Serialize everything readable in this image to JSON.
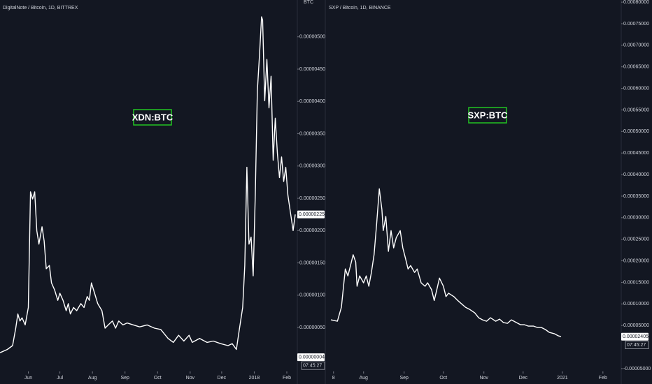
{
  "chart_data": [
    {
      "type": "line",
      "title": "DigitalNote / Bitcoin, 1D, BITTREX",
      "annotation": "XDN:BTC",
      "axis_unit": "BTC",
      "color": "#ffffff",
      "x": [
        0,
        7,
        12,
        15,
        17,
        19,
        21,
        24,
        27,
        29,
        31,
        33,
        35,
        37,
        40,
        42,
        44,
        47,
        49,
        52,
        55,
        57,
        60,
        63,
        65,
        67,
        70,
        73,
        77,
        80,
        83,
        85,
        87,
        90,
        93,
        97,
        100,
        103,
        107,
        110,
        113,
        117,
        121,
        127,
        133,
        140,
        147,
        153,
        160,
        165,
        170,
        175,
        180,
        183,
        190,
        197,
        203,
        210,
        217,
        221,
        225,
        228,
        231,
        233,
        235,
        237,
        239,
        241,
        243,
        245,
        247,
        249,
        250,
        252,
        254,
        256,
        258,
        260,
        262,
        264,
        266,
        268,
        270,
        272,
        274,
        276,
        279,
        281
      ],
      "values": [
        1.1e-07,
        1.6e-07,
        2.2e-07,
        4.9e-07,
        7.1e-07,
        6e-07,
        6.5e-07,
        5.4e-07,
        8.1e-07,
        2.6e-06,
        2.49e-06,
        2.6e-06,
        2e-06,
        1.79e-06,
        2.06e-06,
        1.84e-06,
        1.41e-06,
        1.46e-06,
        1.19e-06,
        1.08e-06,
        9.2e-07,
        1.03e-06,
        9.2e-07,
        7.6e-07,
        8.7e-07,
        7.1e-07,
        8.1e-07,
        7.6e-07,
        8.7e-07,
        8.1e-07,
        9.8e-07,
        9.2e-07,
        1.19e-06,
        1.03e-06,
        8.7e-07,
        7.6e-07,
        4.9e-07,
        5.4e-07,
        6e-07,
        4.9e-07,
        6e-07,
        5.4e-07,
        5.7e-07,
        5.4e-07,
        5.1e-07,
        5.4e-07,
        4.9e-07,
        4.7e-07,
        3.3e-07,
        2.7e-07,
        3.8e-07,
        2.9e-07,
        3.8e-07,
        2.7e-07,
        3.3e-07,
        2.7e-07,
        2.9e-07,
        2.5e-07,
        2.2e-07,
        2.5e-07,
        1.6e-07,
        4.9e-07,
        8.1e-07,
        1.46e-06,
        2.98e-06,
        1.79e-06,
        1.9e-06,
        1.3e-06,
        2.55e-06,
        4.17e-06,
        4.71e-06,
        5.31e-06,
        5.26e-06,
        4.01e-06,
        4.65e-06,
        3.9e-06,
        4.39e-06,
        3.09e-06,
        3.74e-06,
        3.2e-06,
        2.82e-06,
        3.14e-06,
        2.76e-06,
        2.98e-06,
        2.55e-06,
        2.33e-06,
        2e-06,
        2.25e-06
      ],
      "xlim": [
        0,
        281
      ],
      "xticks": [
        {
          "value": 27,
          "label": "Jun"
        },
        {
          "value": 57,
          "label": "Jul"
        },
        {
          "value": 88,
          "label": "Aug"
        },
        {
          "value": 119,
          "label": "Sep"
        },
        {
          "value": 150,
          "label": "Oct"
        },
        {
          "value": 181,
          "label": "Nov"
        },
        {
          "value": 211,
          "label": "Dec"
        },
        {
          "value": 242,
          "label": "2018"
        },
        {
          "value": 273,
          "label": "Feb"
        }
      ],
      "ylim": [
        -1.8e-07,
        5.57e-06
      ],
      "yticks": [
        {
          "value": 5e-07,
          "label": "0.00000050"
        },
        {
          "value": 1e-06,
          "label": "0.00000100"
        },
        {
          "value": 1.5e-06,
          "label": "0.00000150"
        },
        {
          "value": 2e-06,
          "label": "0.00000200"
        },
        {
          "value": 2.5e-06,
          "label": "0.00000250"
        },
        {
          "value": 3e-06,
          "label": "0.00000300"
        },
        {
          "value": 3.5e-06,
          "label": "0.00000350"
        },
        {
          "value": 4e-06,
          "label": "0.00000400"
        },
        {
          "value": 4.5e-06,
          "label": "0.00000450"
        },
        {
          "value": 5e-06,
          "label": "0.00000500"
        }
      ],
      "price_labels": [
        {
          "value": 2.25e-06,
          "label": "0.00000225"
        },
        {
          "value": 4e-08,
          "label": "0.00000004"
        }
      ],
      "countdown": "07:45:27"
    },
    {
      "type": "line",
      "title": "SXP / Bitcoin, 1D, BINANCE",
      "annotation": "SXP:BTC",
      "color": "#ffffff",
      "x": [
        23,
        28,
        31,
        34,
        36,
        38,
        40,
        42,
        43,
        45,
        48,
        50,
        52,
        54,
        56,
        58,
        60,
        62,
        63,
        65,
        67,
        69,
        71,
        73,
        76,
        78,
        80,
        82,
        84,
        87,
        89,
        92,
        95,
        97,
        100,
        102,
        104,
        106,
        109,
        111,
        113,
        117,
        120,
        123,
        126,
        129,
        133,
        136,
        139,
        142,
        145,
        149,
        152,
        155,
        158,
        161,
        165,
        168,
        171,
        174,
        178,
        181,
        184,
        187,
        190,
        194,
        197,
        199
      ],
      "values": [
        6.31e-05,
        5.99e-05,
        9.22e-05,
        0.0001812,
        0.000165,
        0.000189,
        0.000214,
        0.000197,
        0.000141,
        0.000165,
        0.000149,
        0.000165,
        0.000141,
        0.000173,
        0.000214,
        0.000286,
        0.000367,
        0.000319,
        0.00027,
        0.000303,
        0.000222,
        0.00027,
        0.00023,
        0.000254,
        0.00027,
        0.00023,
        0.000206,
        0.000181,
        0.000189,
        0.000173,
        0.000181,
        0.000149,
        0.000141,
        0.000149,
        0.000133,
        0.000108,
        0.000133,
        0.00016,
        0.000141,
        0.000117,
        0.000125,
        0.000117,
        0.000108,
        0.0001,
        9.22e-05,
        8.74e-05,
        7.93e-05,
        6.8e-05,
        6.31e-05,
        5.99e-05,
        6.8e-05,
        5.99e-05,
        6.47e-05,
        5.66e-05,
        5.5e-05,
        6.31e-05,
        5.66e-05,
        5.18e-05,
        5.18e-05,
        4.85e-05,
        4.85e-05,
        4.53e-05,
        4.53e-05,
        4.05e-05,
        3.4e-05,
        3.07e-05,
        2.59e-05,
        2.405e-05
      ],
      "xlim": [
        0,
        245
      ],
      "xticks": [
        {
          "value": 25,
          "label": "8"
        },
        {
          "value": 48,
          "label": "Aug"
        },
        {
          "value": 79,
          "label": "Sep"
        },
        {
          "value": 109,
          "label": "Oct"
        },
        {
          "value": 140,
          "label": "Nov"
        },
        {
          "value": 170,
          "label": "Dec"
        },
        {
          "value": 200,
          "label": "2021"
        },
        {
          "value": 231,
          "label": "Feb"
        }
      ],
      "ylim": [
        -5.66e-05,
        0.000805
      ],
      "yticks": [
        {
          "value": -5e-05,
          "label": "-0.00005000"
        },
        {
          "value": 5e-05,
          "label": "0.00005000"
        },
        {
          "value": 0.0001,
          "label": "0.00010000"
        },
        {
          "value": 0.00015,
          "label": "0.00015000"
        },
        {
          "value": 0.0002,
          "label": "0.00020000"
        },
        {
          "value": 0.00025,
          "label": "0.00025000"
        },
        {
          "value": 0.0003,
          "label": "0.00030000"
        },
        {
          "value": 0.00035,
          "label": "0.00035000"
        },
        {
          "value": 0.0004,
          "label": "0.00040000"
        },
        {
          "value": 0.00045,
          "label": "0.00045000"
        },
        {
          "value": 0.0005,
          "label": "0.00050000"
        },
        {
          "value": 0.00055,
          "label": "0.00055000"
        },
        {
          "value": 0.0006,
          "label": "0.00060000"
        },
        {
          "value": 0.00065,
          "label": "0.00065000"
        },
        {
          "value": 0.0007,
          "label": "0.00070000"
        },
        {
          "value": 0.00075,
          "label": "0.00075000"
        },
        {
          "value": 0.0008,
          "label": "0.00080000"
        }
      ],
      "price_labels": [
        {
          "value": 2.405e-05,
          "label": "0.00002405"
        }
      ],
      "countdown": "07:45:27"
    }
  ]
}
